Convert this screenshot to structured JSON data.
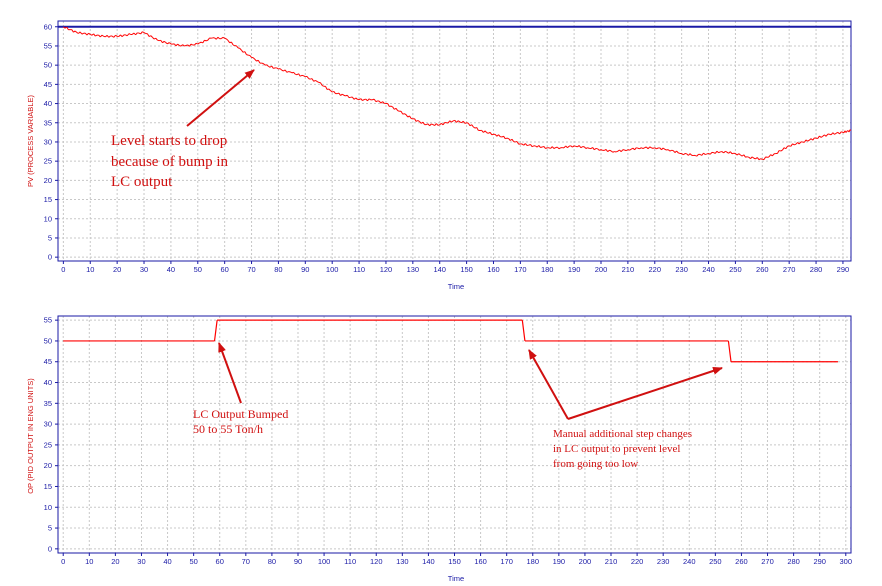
{
  "chart_data": [
    {
      "type": "line",
      "xlabel": "Time",
      "ylabel": "PV (PROCESS VARIABLE)",
      "xlim": [
        -2,
        293
      ],
      "ylim": [
        -1,
        61.5
      ],
      "xticks": [
        0,
        10,
        20,
        30,
        40,
        50,
        60,
        70,
        80,
        90,
        100,
        110,
        120,
        130,
        140,
        150,
        160,
        170,
        180,
        190,
        200,
        210,
        220,
        230,
        240,
        250,
        260,
        270,
        280,
        290
      ],
      "yticks": [
        0,
        5,
        10,
        15,
        20,
        25,
        30,
        35,
        40,
        45,
        50,
        55,
        60
      ],
      "grid": true,
      "colors": {
        "pv": "#ff0000",
        "sp": "#1a1aa6",
        "axis": "#1a1aa6",
        "grid": "#c8c8c8"
      },
      "setpoint": 60,
      "series": [
        {
          "x": [
            0,
            5,
            10,
            15,
            20,
            25,
            30,
            35,
            40,
            45,
            50,
            55,
            60,
            65,
            70,
            75,
            80,
            85,
            90,
            95,
            100,
            105,
            110,
            115,
            120,
            125,
            130,
            135,
            140,
            145,
            150,
            155,
            160,
            165,
            170,
            175,
            180,
            185,
            190,
            195,
            200,
            205,
            210,
            215,
            220,
            225,
            230,
            235,
            240,
            245,
            250,
            255,
            260,
            265,
            270,
            275,
            280,
            285,
            290,
            293
          ],
          "y": [
            60,
            58.5,
            58,
            57.5,
            57.5,
            58,
            58.5,
            56.5,
            55.5,
            55,
            55.5,
            57,
            57,
            54.5,
            52,
            50,
            49,
            48,
            47,
            45.5,
            43,
            42,
            41,
            41,
            40,
            38,
            36,
            34.5,
            34.5,
            35.5,
            35,
            33,
            32,
            31,
            29.5,
            29,
            28.5,
            28.5,
            29,
            28.5,
            28,
            27.5,
            28,
            28.5,
            28.5,
            28,
            27,
            26.5,
            27,
            27.5,
            27,
            26,
            25.5,
            27,
            29,
            30,
            31,
            32,
            32.5,
            33
          ]
        }
      ],
      "annotations": [
        {
          "lines": [
            "Level starts to drop",
            "because of bump in",
            "LC output"
          ],
          "arrow_to": [
            72,
            49
          ],
          "arrow_from": [
            46,
            34
          ]
        }
      ]
    },
    {
      "type": "line",
      "xlabel": "Time",
      "ylabel": "OP (PID OUTPUT IN ENG UNITS)",
      "xlim": [
        -2,
        302
      ],
      "ylim": [
        -1,
        56
      ],
      "xticks": [
        0,
        10,
        20,
        30,
        40,
        50,
        60,
        70,
        80,
        90,
        100,
        110,
        120,
        130,
        140,
        150,
        160,
        170,
        180,
        190,
        200,
        210,
        220,
        230,
        240,
        250,
        260,
        270,
        280,
        290,
        300
      ],
      "yticks": [
        0,
        5,
        10,
        15,
        20,
        25,
        30,
        35,
        40,
        45,
        50,
        55
      ],
      "grid": true,
      "colors": {
        "op": "#ff0000",
        "axis": "#1a1aa6",
        "grid": "#c8c8c8"
      },
      "series": [
        {
          "x": [
            0,
            58,
            59,
            176,
            177,
            255,
            256,
            297
          ],
          "y": [
            50,
            50,
            55,
            55,
            50,
            50,
            45,
            45
          ]
        }
      ],
      "annotations": [
        {
          "lines": [
            "LC Output Bumped",
            "50 to 55  Ton/h"
          ],
          "arrow_to": [
            59,
            49
          ],
          "arrow_from": [
            67,
            29
          ]
        },
        {
          "lines": [
            "Manual additional step changes",
            "in LC output to prevent level",
            "from going too low"
          ],
          "arrow_to": [
            178,
            49
          ],
          "arrow_to_2": [
            253,
            45
          ],
          "arrow_from": [
            196,
            31
          ]
        }
      ]
    }
  ]
}
